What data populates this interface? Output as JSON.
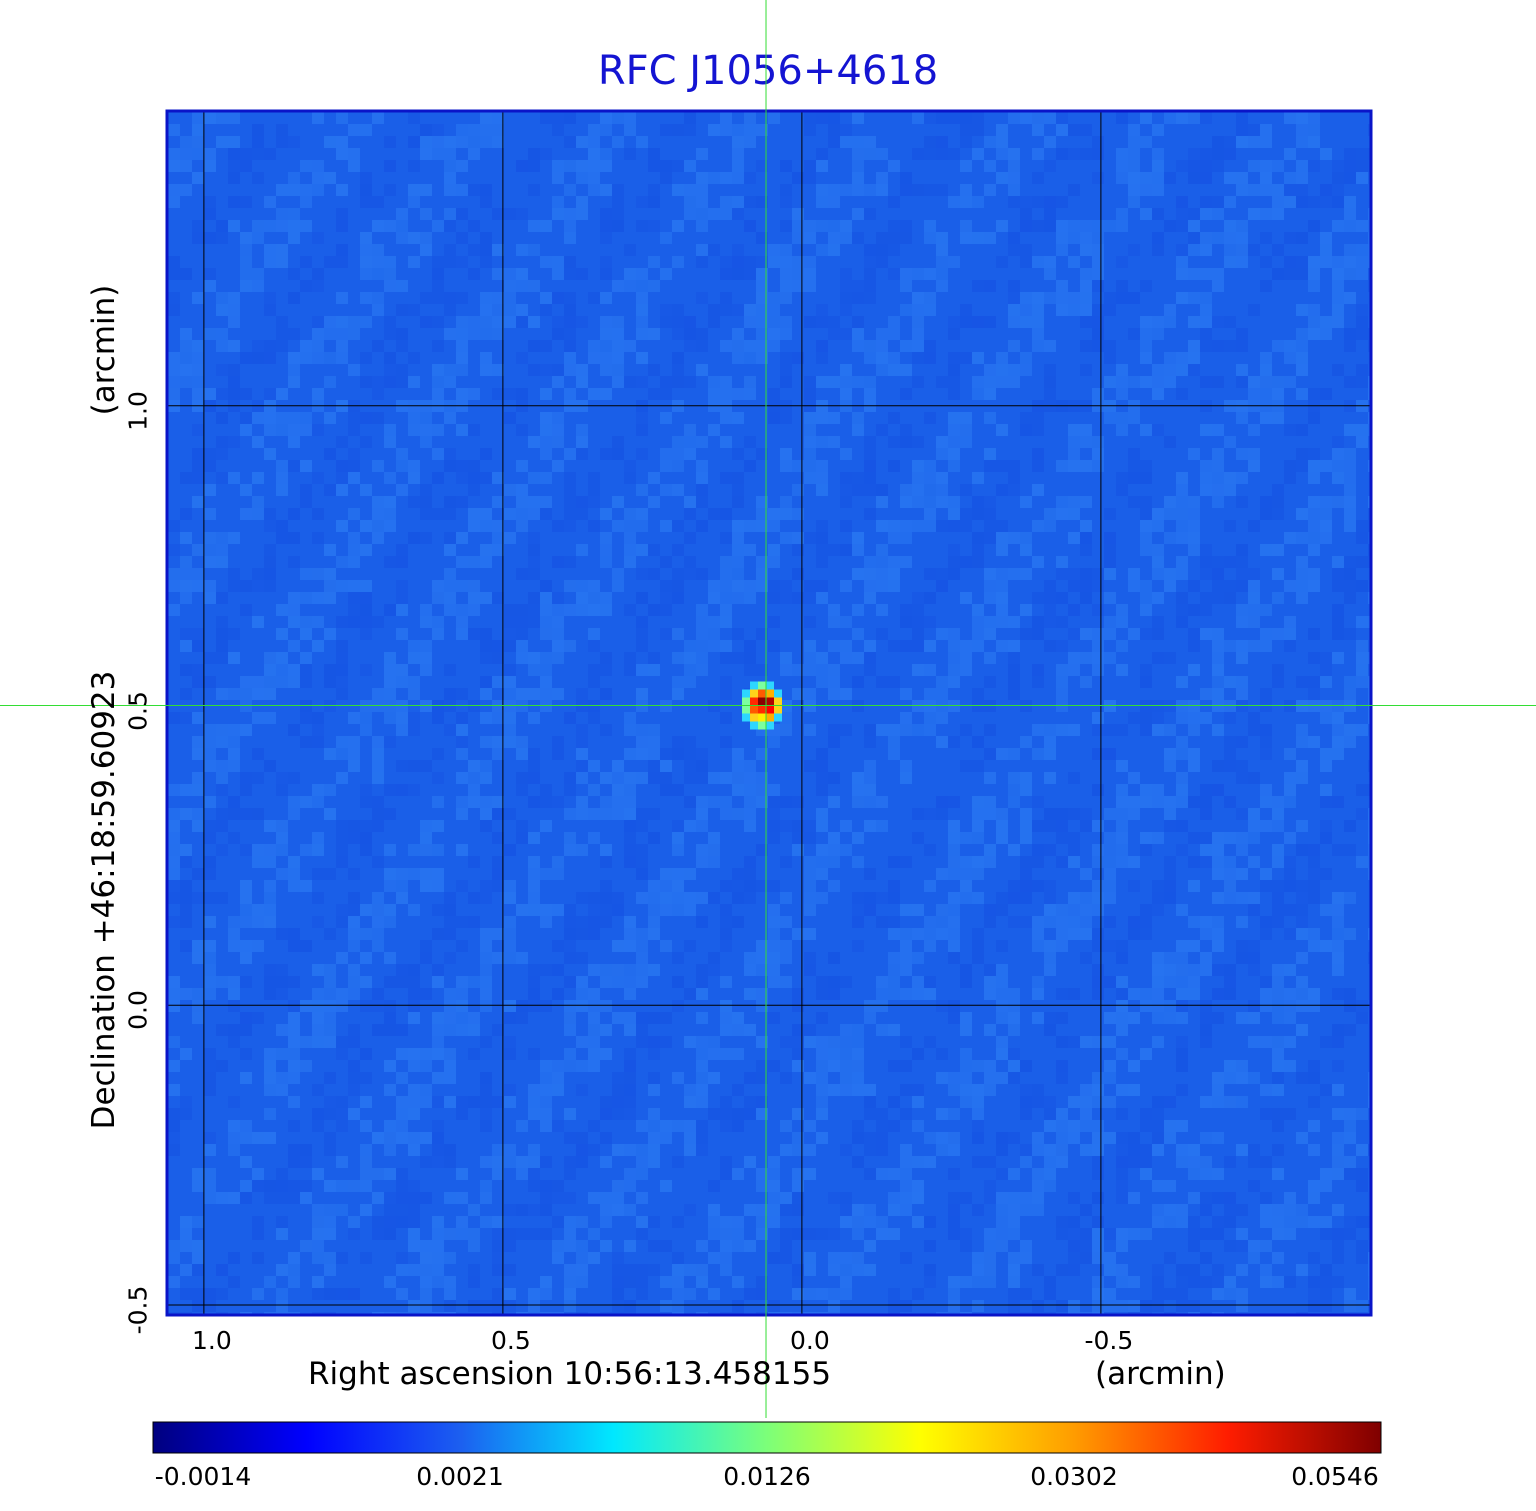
{
  "chart_data": {
    "type": "heatmap",
    "title": "RFC J1056+4618",
    "xlabel": "Right ascension  10:56:13.458155",
    "xunit": "(arcmin)",
    "ylabel": "Declination  +46:18:59.60923",
    "yunit": "(arcmin)",
    "x_ticks": [
      "1.0",
      "0.5",
      "0.0",
      "-0.5"
    ],
    "y_ticks": [
      "1.0",
      "0.5",
      "0.0",
      "-0.5"
    ],
    "x_tick_values": [
      1.0,
      0.5,
      0.0,
      -0.5
    ],
    "y_tick_values": [
      1.0,
      0.5,
      0.0,
      -0.5
    ],
    "xlim": [
      1.06,
      -0.95
    ],
    "ylim": [
      -0.515,
      1.49
    ],
    "grid": true,
    "crosshair": {
      "x": 0.06,
      "y": 0.5,
      "color": "#33dd33"
    },
    "source_peak": {
      "x": 0.06,
      "y": 0.5,
      "value": 0.0546
    },
    "colorbar": {
      "labels": [
        "-0.0014",
        "0.0021",
        "0.0126",
        "0.0302",
        "0.0546"
      ],
      "values": [
        -0.0014,
        0.0021,
        0.0126,
        0.0302,
        0.0546
      ],
      "colormap": [
        "#00007f",
        "#0000ff",
        "#1c5ff0",
        "#00e8ff",
        "#7cff79",
        "#ffff00",
        "#ff9c00",
        "#ff1d00",
        "#7f0000"
      ]
    },
    "background_color": "#1a5fe8",
    "frame_color": "#0a14c8"
  }
}
